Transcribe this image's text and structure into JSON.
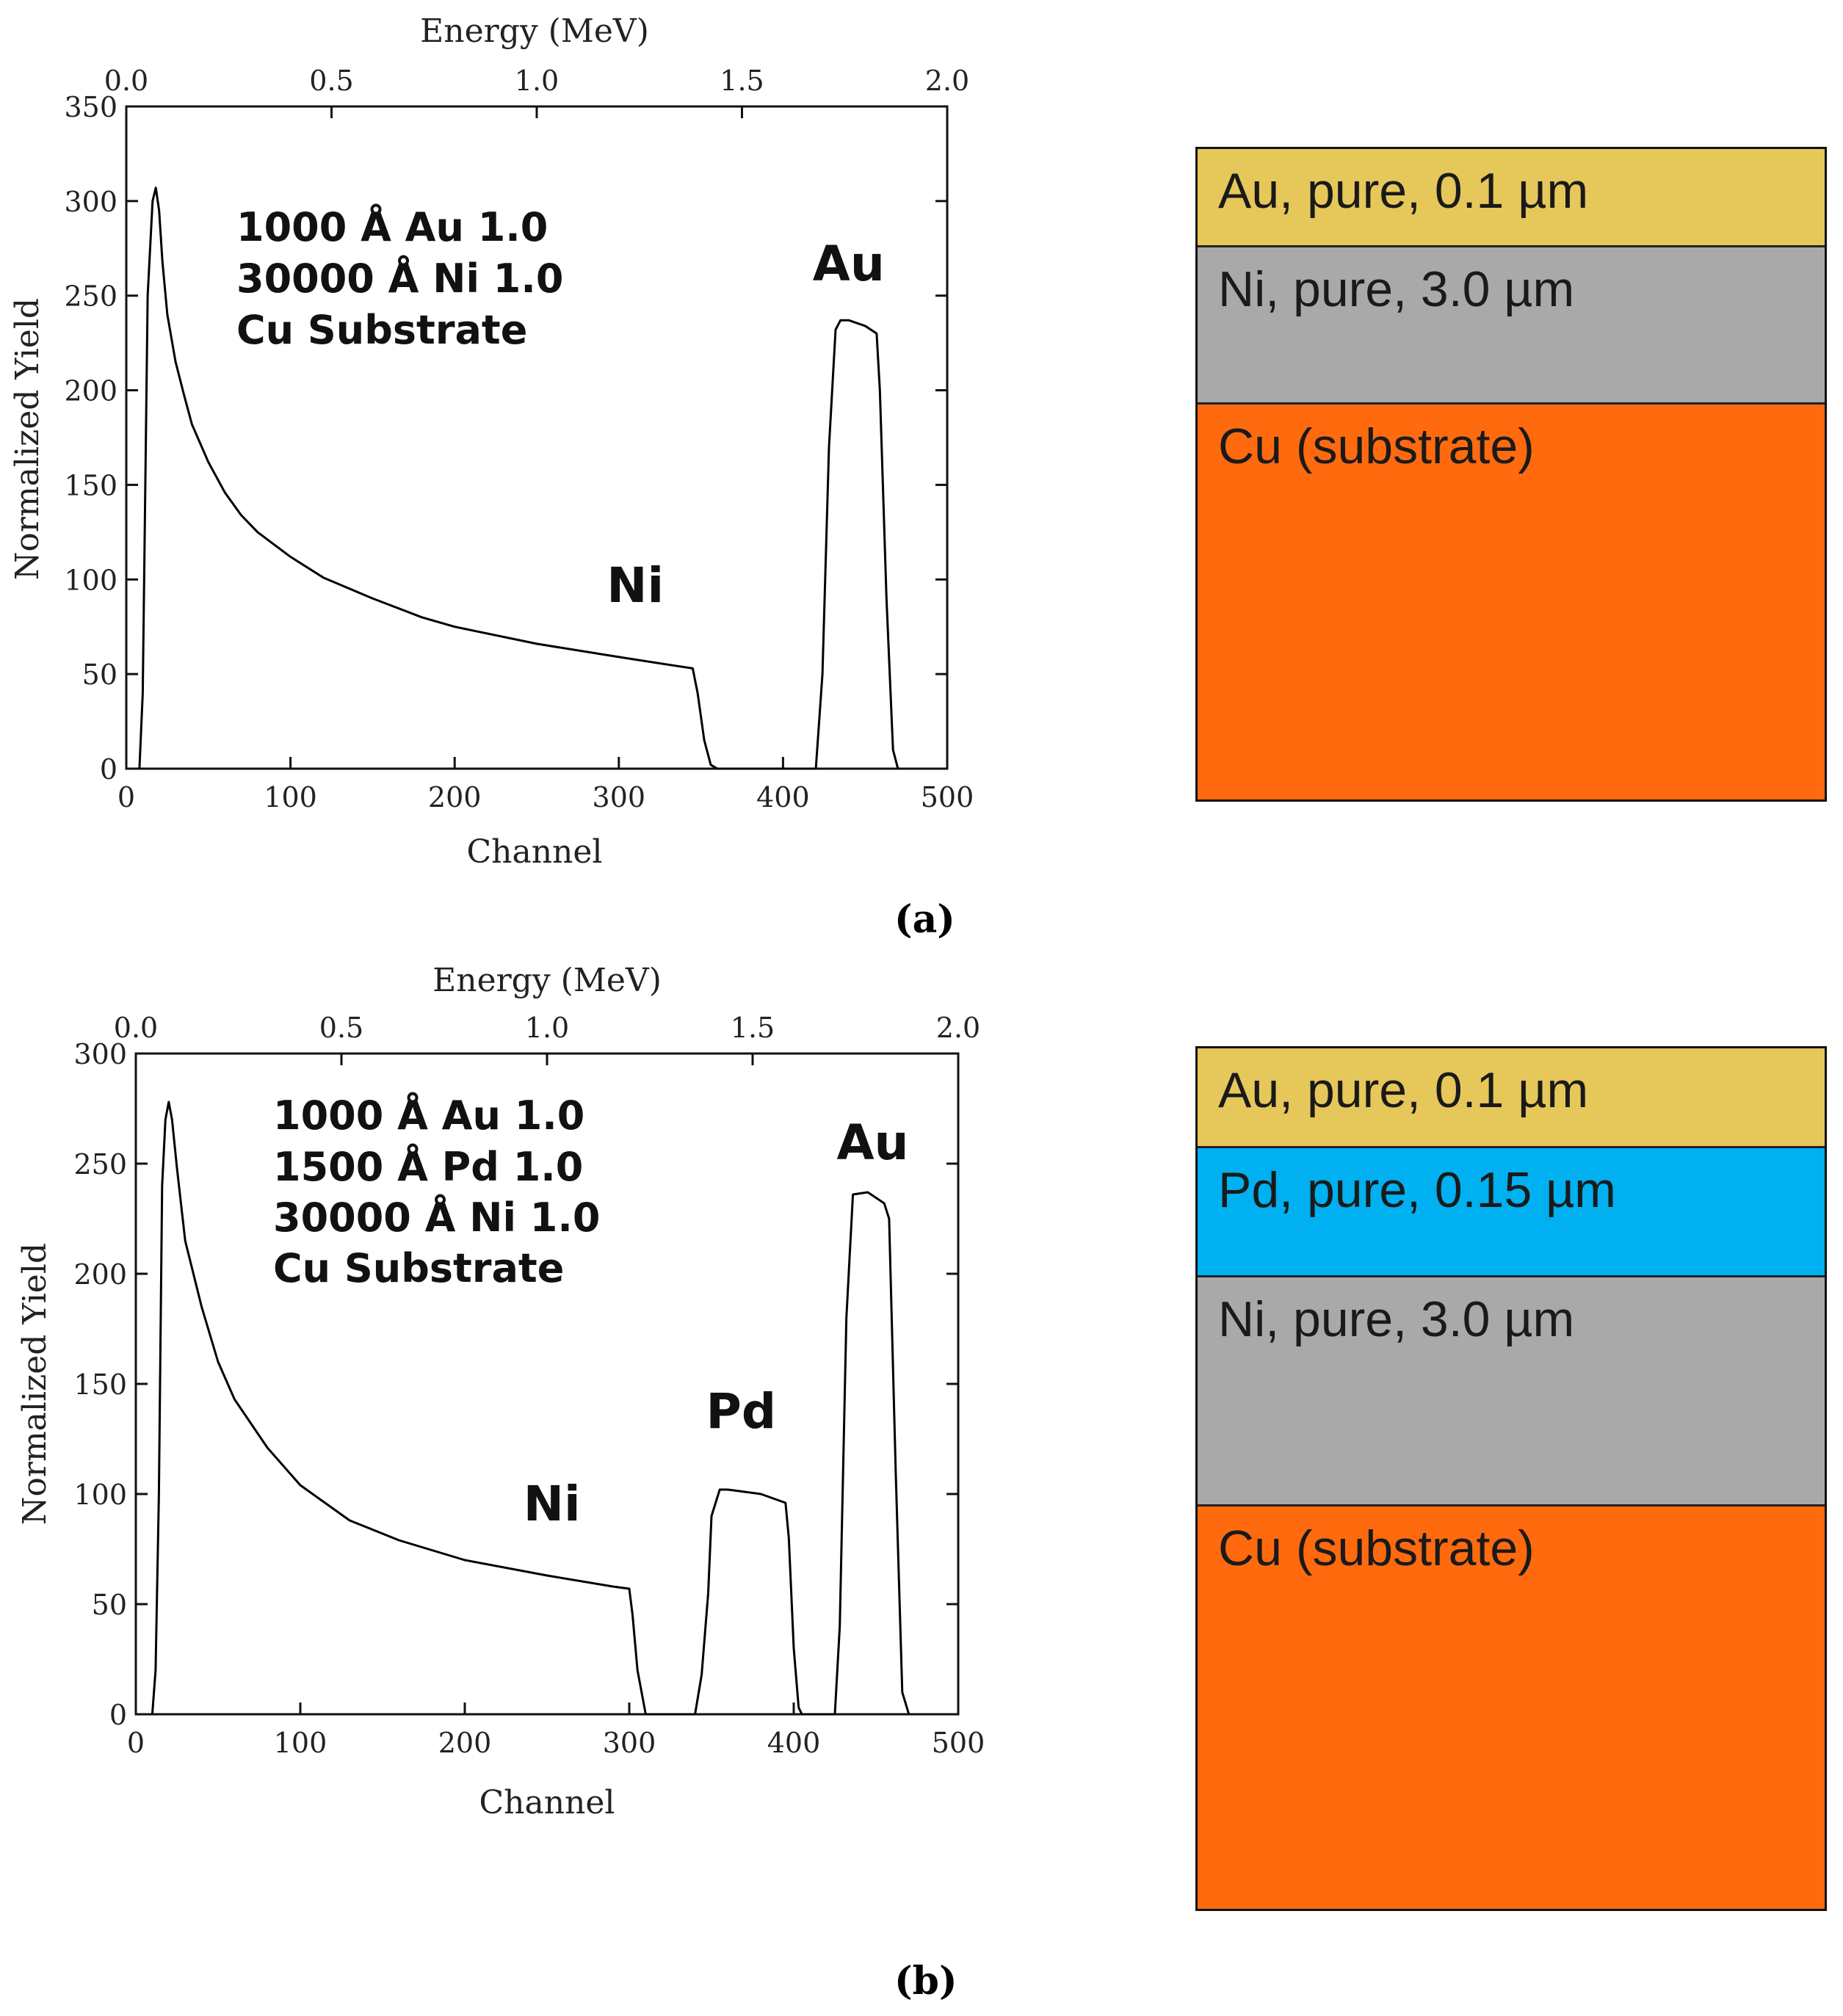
{
  "panels": [
    {
      "caption": "(a)",
      "chart_data": {
        "type": "line",
        "xlabel": "Channel",
        "ylabel": "Normalized Yield",
        "top_axis_label": "Energy (MeV)",
        "xlim": [
          0,
          500
        ],
        "ylim": [
          0,
          350
        ],
        "x_ticks": [
          0,
          100,
          200,
          300,
          400,
          500
        ],
        "y_ticks": [
          0,
          50,
          100,
          150,
          200,
          250,
          300,
          350
        ],
        "top_ticks": [
          {
            "value": 0.0,
            "label": "0.0"
          },
          {
            "value": 0.5,
            "label": "0.5"
          },
          {
            "value": 1.0,
            "label": "1.0"
          },
          {
            "value": 1.5,
            "label": "1.5"
          },
          {
            "value": 2.0,
            "label": "2.0"
          }
        ],
        "energy_map": {
          "channel_at_0": 0,
          "channel_per_MeV": 250
        },
        "annotation_lines": [
          "1000 Å Au 1.0",
          "30000 Å Ni 1.0",
          "Cu Substrate"
        ],
        "peak_labels": [
          {
            "text": "Ni",
            "channel": 310,
            "yield": 88
          },
          {
            "text": "Au",
            "channel": 440,
            "yield": 258
          }
        ],
        "series": [
          {
            "name": "spectrum",
            "x": [
              8,
              10,
              13,
              16,
              18,
              20,
              22,
              25,
              30,
              35,
              40,
              50,
              60,
              70,
              80,
              100,
              120,
              150,
              180,
              200,
              250,
              300,
              330,
              345,
              348,
              352,
              356,
              360,
              420,
              424,
              428,
              432,
              435,
              440,
              450,
              457,
              459,
              463,
              467,
              470
            ],
            "y": [
              0,
              40,
              250,
              300,
              307,
              295,
              268,
              240,
              215,
              198,
              182,
              162,
              146,
              134,
              125,
              112,
              101,
              90,
              80,
              75,
              66,
              59,
              55,
              53,
              40,
              15,
              2,
              0,
              0,
              50,
              170,
              232,
              237,
              237,
              234,
              230,
              200,
              90,
              10,
              0
            ]
          }
        ]
      },
      "layers": [
        {
          "label": "Au, pure, 0.1 µm",
          "color": "#e6c75a"
        },
        {
          "label": "Ni, pure, 3.0 µm",
          "color": "#a9a9a9"
        },
        {
          "label": "Cu (substrate)",
          "color": "#ff6a0f"
        }
      ]
    },
    {
      "caption": "(b)",
      "chart_data": {
        "type": "line",
        "xlabel": "Channel",
        "ylabel": "Normalized Yield",
        "top_axis_label": "Energy (MeV)",
        "xlim": [
          0,
          500
        ],
        "ylim": [
          0,
          300
        ],
        "x_ticks": [
          0,
          100,
          200,
          300,
          400,
          500
        ],
        "y_ticks": [
          0,
          50,
          100,
          150,
          200,
          250,
          300
        ],
        "top_ticks": [
          {
            "value": 0.0,
            "label": "0.0"
          },
          {
            "value": 0.5,
            "label": "0.5"
          },
          {
            "value": 1.0,
            "label": "1.0"
          },
          {
            "value": 1.5,
            "label": "1.5"
          },
          {
            "value": 2.0,
            "label": "2.0"
          }
        ],
        "energy_map": {
          "channel_at_0": 0,
          "channel_per_MeV": 250
        },
        "annotation_lines": [
          "1000 Å Au 1.0",
          "1500 Å Pd 1.0",
          "30000 Å Ni 1.0",
          "Cu Substrate"
        ],
        "peak_labels": [
          {
            "text": "Ni",
            "channel": 253,
            "yield": 88
          },
          {
            "text": "Pd",
            "channel": 368,
            "yield": 130
          },
          {
            "text": "Au",
            "channel": 448,
            "yield": 252
          }
        ],
        "series": [
          {
            "name": "spectrum",
            "x": [
              10,
              12,
              14,
              16,
              18,
              20,
              22,
              25,
              30,
              40,
              50,
              60,
              80,
              100,
              130,
              160,
              200,
              250,
              290,
              300,
              302,
              305,
              310,
              340,
              344,
              348,
              350,
              355,
              360,
              380,
              395,
              397,
              400,
              403,
              405,
              425,
              428,
              432,
              436,
              445,
              455,
              458,
              462,
              466,
              470
            ],
            "y": [
              0,
              20,
              100,
              240,
              270,
              278,
              270,
              248,
              215,
              185,
              160,
              143,
              121,
              104,
              88,
              79,
              70,
              63,
              58,
              57,
              45,
              20,
              0,
              0,
              18,
              55,
              90,
              102,
              102,
              100,
              96,
              80,
              30,
              3,
              0,
              0,
              40,
              180,
              236,
              237,
              232,
              225,
              110,
              10,
              0
            ]
          }
        ]
      },
      "layers": [
        {
          "label": "Au, pure, 0.1 µm",
          "color": "#e6c75a"
        },
        {
          "label": "Pd, pure, 0.15 µm",
          "color": "#00b0f0"
        },
        {
          "label": "Ni, pure, 3.0 µm",
          "color": "#a9a9a9"
        },
        {
          "label": "Cu (substrate)",
          "color": "#ff6a0f"
        }
      ]
    }
  ]
}
